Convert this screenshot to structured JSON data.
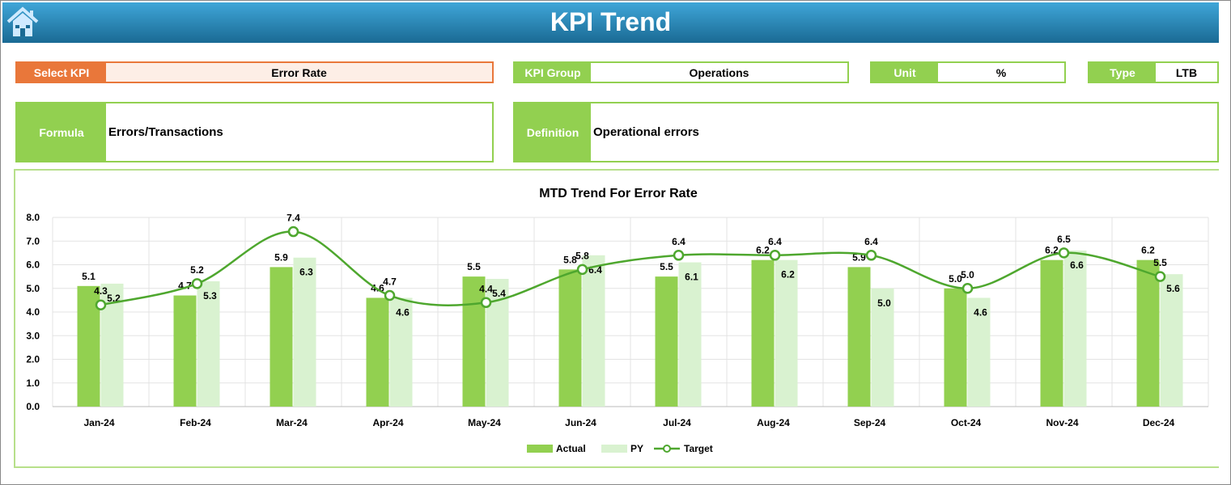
{
  "header": {
    "title": "KPI Trend",
    "home_icon": "home-icon"
  },
  "fields": {
    "select_kpi": {
      "label": "Select KPI",
      "value": "Error Rate"
    },
    "kpi_group": {
      "label": "KPI Group",
      "value": "Operations"
    },
    "unit": {
      "label": "Unit",
      "value": "%"
    },
    "type": {
      "label": "Type",
      "value": "LTB"
    },
    "formula": {
      "label": "Formula",
      "value": "Errors/Transactions"
    },
    "definition": {
      "label": "Definition",
      "value": "Operational errors"
    }
  },
  "colors": {
    "actual": "#92d050",
    "py": "#d9f2d0",
    "target": "#4ea72e",
    "accent": "#e9773a",
    "header": "#1f7aa8"
  },
  "chart_data": {
    "type": "bar",
    "title": "MTD Trend For Error Rate",
    "categories": [
      "Jan-24",
      "Feb-24",
      "Mar-24",
      "Apr-24",
      "May-24",
      "Jun-24",
      "Jul-24",
      "Aug-24",
      "Sep-24",
      "Oct-24",
      "Nov-24",
      "Dec-24"
    ],
    "series": [
      {
        "name": "Actual",
        "type": "bar",
        "values": [
          5.1,
          4.7,
          5.9,
          4.6,
          5.5,
          5.8,
          5.5,
          6.2,
          5.9,
          5.0,
          6.2,
          6.2
        ]
      },
      {
        "name": "PY",
        "type": "bar",
        "values": [
          5.2,
          5.3,
          6.3,
          4.6,
          5.4,
          6.4,
          6.1,
          6.2,
          5.0,
          4.6,
          6.6,
          5.6
        ]
      },
      {
        "name": "Target",
        "type": "line",
        "smooth": true,
        "values": [
          4.3,
          5.2,
          7.4,
          4.7,
          4.4,
          5.8,
          6.4,
          6.4,
          6.4,
          5.0,
          6.5,
          5.5
        ]
      }
    ],
    "ylim": [
      0,
      8
    ],
    "yticks": [
      "0.0",
      "1.0",
      "2.0",
      "3.0",
      "4.0",
      "5.0",
      "6.0",
      "7.0",
      "8.0"
    ],
    "grid": true,
    "legend": "bottom"
  }
}
